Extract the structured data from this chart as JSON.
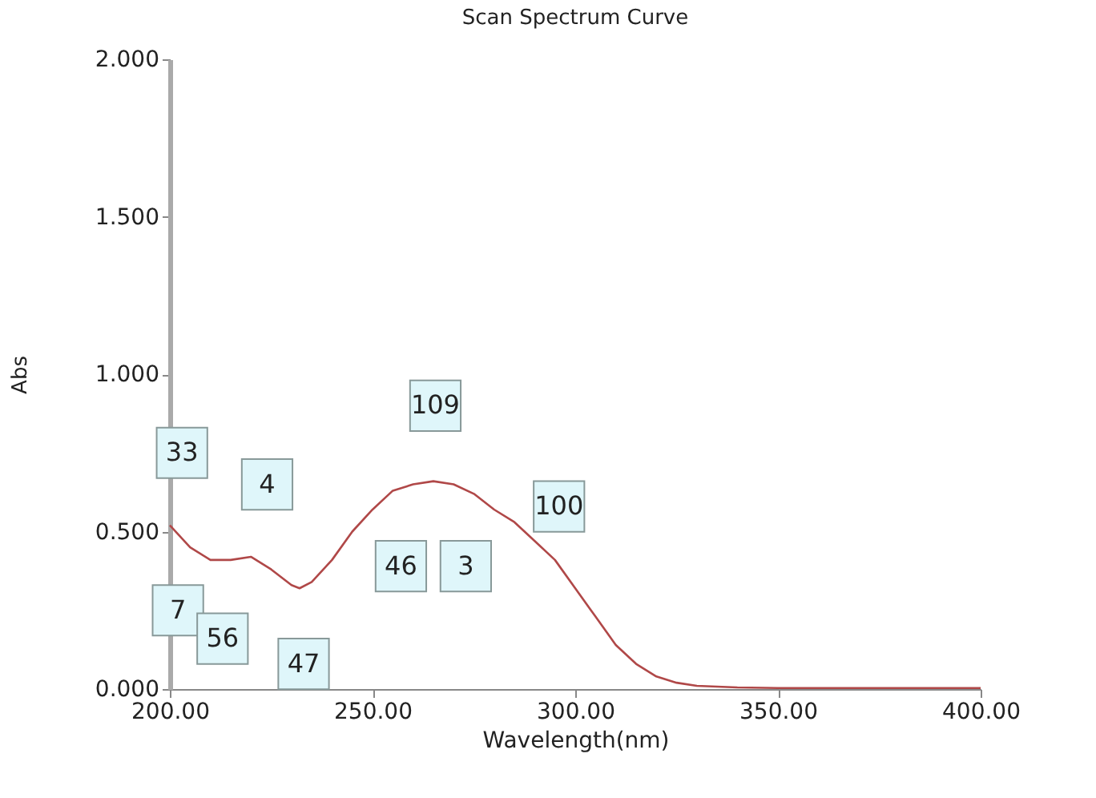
{
  "chart_data": {
    "type": "line",
    "title": "Scan Spectrum Curve",
    "xlabel": "Wavelength(nm)",
    "ylabel": "Abs",
    "x": [
      200,
      205,
      210,
      215,
      220,
      225,
      230,
      232,
      235,
      240,
      245,
      250,
      255,
      260,
      265,
      270,
      275,
      280,
      285,
      290,
      295,
      300,
      305,
      310,
      315,
      320,
      325,
      330,
      340,
      350,
      360,
      370,
      380,
      390,
      400
    ],
    "series": [
      {
        "color": "#b04848",
        "values": [
          0.52,
          0.45,
          0.41,
          0.41,
          0.42,
          0.38,
          0.33,
          0.32,
          0.34,
          0.41,
          0.5,
          0.57,
          0.63,
          0.65,
          0.66,
          0.65,
          0.62,
          0.57,
          0.53,
          0.47,
          0.41,
          0.32,
          0.23,
          0.14,
          0.08,
          0.04,
          0.02,
          0.01,
          0.005,
          0.003,
          0.003,
          0.003,
          0.003,
          0.003,
          0.003
        ]
      }
    ],
    "xlim": [
      200,
      400
    ],
    "ylim": [
      0,
      2
    ],
    "xticks": [
      {
        "value": 200,
        "label": "200.00"
      },
      {
        "value": 250,
        "label": "250.00"
      },
      {
        "value": 300,
        "label": "300.00"
      },
      {
        "value": 350,
        "label": "350.00"
      },
      {
        "value": 400,
        "label": "400.00"
      }
    ],
    "yticks": [
      {
        "value": 0,
        "label": "0.000"
      },
      {
        "value": 0.5,
        "label": "0.500"
      },
      {
        "value": 1,
        "label": "1.000"
      },
      {
        "value": 1.5,
        "label": "1.500"
      },
      {
        "value": 2,
        "label": "2.000"
      }
    ],
    "annotations": [
      {
        "text": "33",
        "x": 203,
        "y": 0.75
      },
      {
        "text": "4",
        "x": 224,
        "y": 0.65
      },
      {
        "text": "109",
        "x": 265.5,
        "y": 0.9
      },
      {
        "text": "100",
        "x": 296,
        "y": 0.58
      },
      {
        "text": "46",
        "x": 257,
        "y": 0.39
      },
      {
        "text": "3",
        "x": 273,
        "y": 0.39
      },
      {
        "text": "7",
        "x": 202,
        "y": 0.25
      },
      {
        "text": "56",
        "x": 213,
        "y": 0.16
      },
      {
        "text": "47",
        "x": 233,
        "y": 0.08
      }
    ],
    "grid": false,
    "marker": "none",
    "line_style": "solid"
  }
}
